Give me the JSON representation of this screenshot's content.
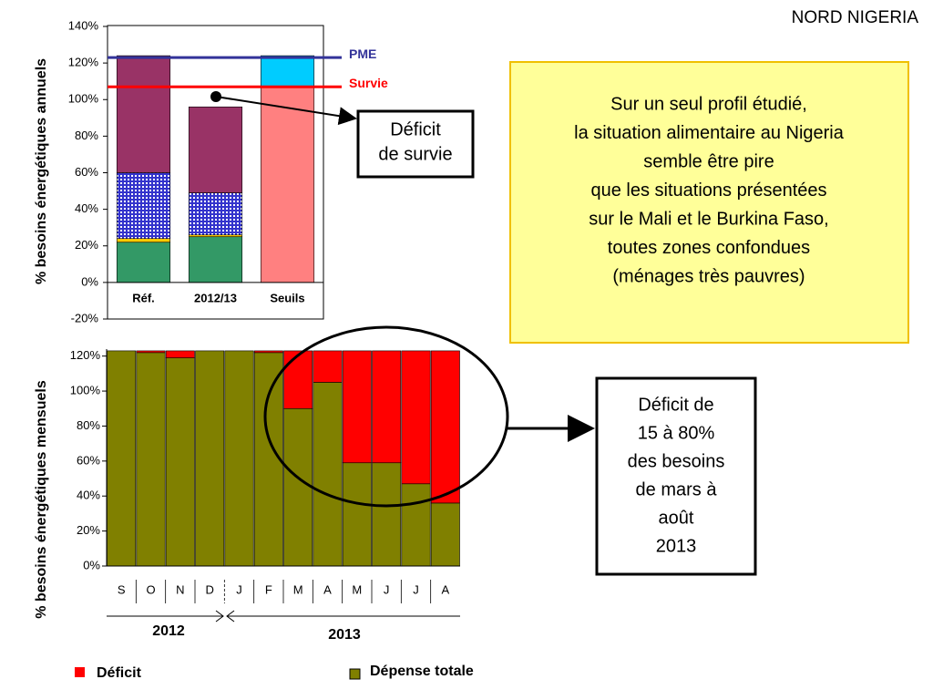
{
  "title": "NORD NIGERIA",
  "info_box": [
    "Sur un seul profil étudié,",
    "la situation alimentaire au Nigeria",
    "semble être pire",
    "que les situations présentées",
    "sur le Mali et le Burkina Faso,",
    "toutes zones confondues",
    "(ménages très pauvres)"
  ],
  "chart_data": [
    {
      "type": "bar",
      "stacked": true,
      "y_label": "% besoins énergétiques annuels",
      "categories": [
        "Réf.",
        "2012/13",
        "Seuils"
      ],
      "series": [
        {
          "color": "#339966",
          "values": [
            22,
            25,
            0
          ]
        },
        {
          "color": "#ffcc00",
          "values": [
            2,
            1,
            0
          ]
        },
        {
          "color": "#3333cc",
          "hatch": true,
          "values": [
            36,
            23,
            0
          ]
        },
        {
          "color": "#993366",
          "values": [
            64,
            47,
            0
          ]
        },
        {
          "color": "#ff8080",
          "values": [
            0,
            0,
            107
          ]
        },
        {
          "color": "#00ccff",
          "values": [
            0,
            0,
            17
          ]
        }
      ],
      "reference_lines": [
        {
          "label": "PME",
          "value": 123,
          "color": "#333399"
        },
        {
          "label": "Survie",
          "value": 107,
          "color": "#ff0000"
        }
      ],
      "annotation": [
        "Déficit",
        "de survie"
      ],
      "ylim": [
        -20,
        140
      ],
      "yticks": [
        {
          "value": -20,
          "label": "-20%"
        },
        {
          "value": 0,
          "label": "0%"
        },
        {
          "value": 20,
          "label": "20%"
        },
        {
          "value": 40,
          "label": "40%"
        },
        {
          "value": 60,
          "label": "60%"
        },
        {
          "value": 80,
          "label": "80%"
        },
        {
          "value": 100,
          "label": "100%"
        },
        {
          "value": 120,
          "label": "120%"
        },
        {
          "value": 140,
          "label": "140%"
        }
      ],
      "grid": false
    },
    {
      "type": "bar",
      "stacked": true,
      "y_label": "% besoins énergétiques mensuels",
      "categories": [
        "S",
        "O",
        "N",
        "D",
        "J",
        "F",
        "M",
        "A",
        "M",
        "J",
        "J",
        "A"
      ],
      "period_labels": [
        "2012",
        "2013"
      ],
      "series": [
        {
          "name": "Dépense totale",
          "color": "#808000",
          "values": [
            123,
            122,
            119,
            123,
            123,
            122,
            90,
            105,
            59,
            59,
            47,
            36
          ]
        },
        {
          "name": "Déficit",
          "color": "#ff0000",
          "values": [
            0,
            1,
            4,
            0,
            0,
            1,
            33,
            18,
            64,
            64,
            76,
            87
          ]
        }
      ],
      "annotation": [
        "Déficit de",
        "15 à 80%",
        "des besoins",
        "de mars à",
        "août",
        "2013"
      ],
      "ylim": [
        0,
        124
      ],
      "yticks": [
        {
          "value": 0,
          "label": "0%"
        },
        {
          "value": 20,
          "label": "20%"
        },
        {
          "value": 40,
          "label": "40%"
        },
        {
          "value": 60,
          "label": "60%"
        },
        {
          "value": 80,
          "label": "80%"
        },
        {
          "value": 100,
          "label": "100%"
        },
        {
          "value": 120,
          "label": "120%"
        }
      ],
      "grid": false
    }
  ]
}
